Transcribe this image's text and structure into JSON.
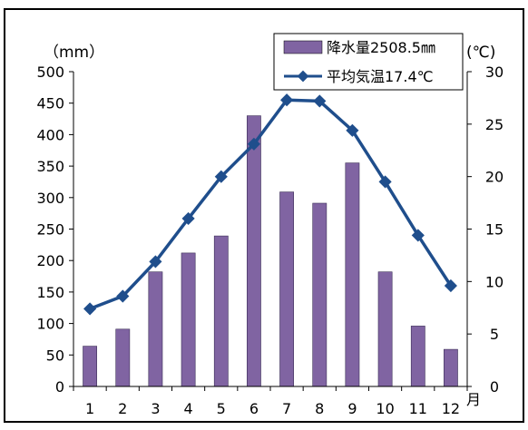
{
  "chart_data": {
    "type": "bar+line",
    "categories": [
      "1",
      "2",
      "3",
      "4",
      "5",
      "6",
      "7",
      "8",
      "9",
      "10",
      "11",
      "12"
    ],
    "x_unit": "月",
    "y_left": {
      "unit": "（mm）",
      "ylim": [
        0,
        500
      ],
      "ticks": [
        0,
        50,
        100,
        150,
        200,
        250,
        300,
        350,
        400,
        450,
        500
      ]
    },
    "y_right": {
      "unit": "(℃)",
      "ylim": [
        0,
        30
      ],
      "ticks": [
        0,
        5,
        10,
        15,
        20,
        25,
        30
      ]
    },
    "series": [
      {
        "name": "降水量2508.5㎜",
        "type": "bar",
        "axis": "left",
        "color": "#8064a2",
        "values": [
          64,
          91,
          182,
          212,
          239,
          430,
          309,
          291,
          355,
          182,
          96,
          59
        ]
      },
      {
        "name": "平均気温17.4℃",
        "type": "line",
        "axis": "right",
        "color": "#1f4e8c",
        "marker": "diamond",
        "values": [
          7.4,
          8.6,
          11.9,
          16.0,
          20.0,
          23.1,
          27.3,
          27.2,
          24.4,
          19.5,
          14.4,
          9.6
        ]
      }
    ],
    "legend_position": "top-right",
    "grid": false
  }
}
